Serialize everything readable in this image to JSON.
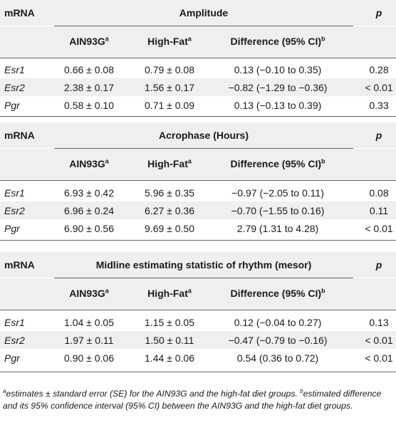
{
  "sections": [
    {
      "mrna_label": "mRNA",
      "title": "Amplitude",
      "p_label": "p",
      "col1": "AIN93G",
      "col1_sup": "a",
      "col2": "High-Fat",
      "col2_sup": "a",
      "col3": "Difference (95% CI)",
      "col3_sup": "b",
      "rows": [
        {
          "gene": "Esr1",
          "ain": "0.66 ± 0.08",
          "hf": "0.79 ± 0.08",
          "diff": "0.13 (−0.10 to 0.35)",
          "p": "0.28"
        },
        {
          "gene": "Esr2",
          "ain": "2.38 ± 0.17",
          "hf": "1.56 ± 0.17",
          "diff": "−0.82 (−1.29 to −0.36)",
          "p": "< 0.01"
        },
        {
          "gene": "Pgr",
          "ain": "0.58 ± 0.10",
          "hf": "0.71 ± 0.09",
          "diff": "0.13 (−0.13 to 0.39)",
          "p": "0.33"
        }
      ]
    },
    {
      "mrna_label": "mRNA",
      "title": "Acrophase (Hours)",
      "p_label": "p",
      "col1": "AIN93G",
      "col1_sup": "a",
      "col2": "High-Fat",
      "col2_sup": "a",
      "col3": "Difference (95% CI)",
      "col3_sup": "b",
      "rows": [
        {
          "gene": "Esr1",
          "ain": "6.93 ± 0.42",
          "hf": "5.96 ± 0.35",
          "diff": "−0.97 (−2.05 to 0.11)",
          "p": "0.08"
        },
        {
          "gene": "Esr2",
          "ain": "6.96 ± 0.24",
          "hf": "6.27 ± 0.36",
          "diff": "−0.70 (−1.55 to 0.16)",
          "p": "0.11"
        },
        {
          "gene": "Pgr",
          "ain": "6.90 ± 0.56",
          "hf": "9.69 ± 0.50",
          "diff": "2.79 (1.31 to 4.28)",
          "p": "< 0.01"
        }
      ]
    },
    {
      "mrna_label": "mRNA",
      "title": "Midline estimating statistic of rhythm (mesor)",
      "p_label": "p",
      "col1": "AIN93G",
      "col1_sup": "a",
      "col2": "High-Fat",
      "col2_sup": "a",
      "col3": "Difference (95% CI)",
      "col3_sup": "b",
      "rows": [
        {
          "gene": "Esr1",
          "ain": "1.04 ± 0.05",
          "hf": "1.15 ± 0.05",
          "diff": "0.12 (−0.04 to 0.27)",
          "p": "0.13"
        },
        {
          "gene": "Esr2",
          "ain": "1.97 ± 0.11",
          "hf": "1.50 ± 0.11",
          "diff": "−0.47 (−0.79 to −0.16)",
          "p": "< 0.01"
        },
        {
          "gene": "Pgr",
          "ain": "0.90 ± 0.06",
          "hf": "1.44 ± 0.06",
          "diff": "0.54 (0.36 to 0.72)",
          "p": "< 0.01"
        }
      ]
    }
  ],
  "footnote": {
    "a_mark": "a",
    "a_text": "estimates ± standard error (SE) for the AIN93G and the high-fat diet groups.",
    "b_mark": "b",
    "b_text": "estimated difference and its 95% confidence interval (95% CI) between the AIN93G and the high-fat diet groups."
  }
}
